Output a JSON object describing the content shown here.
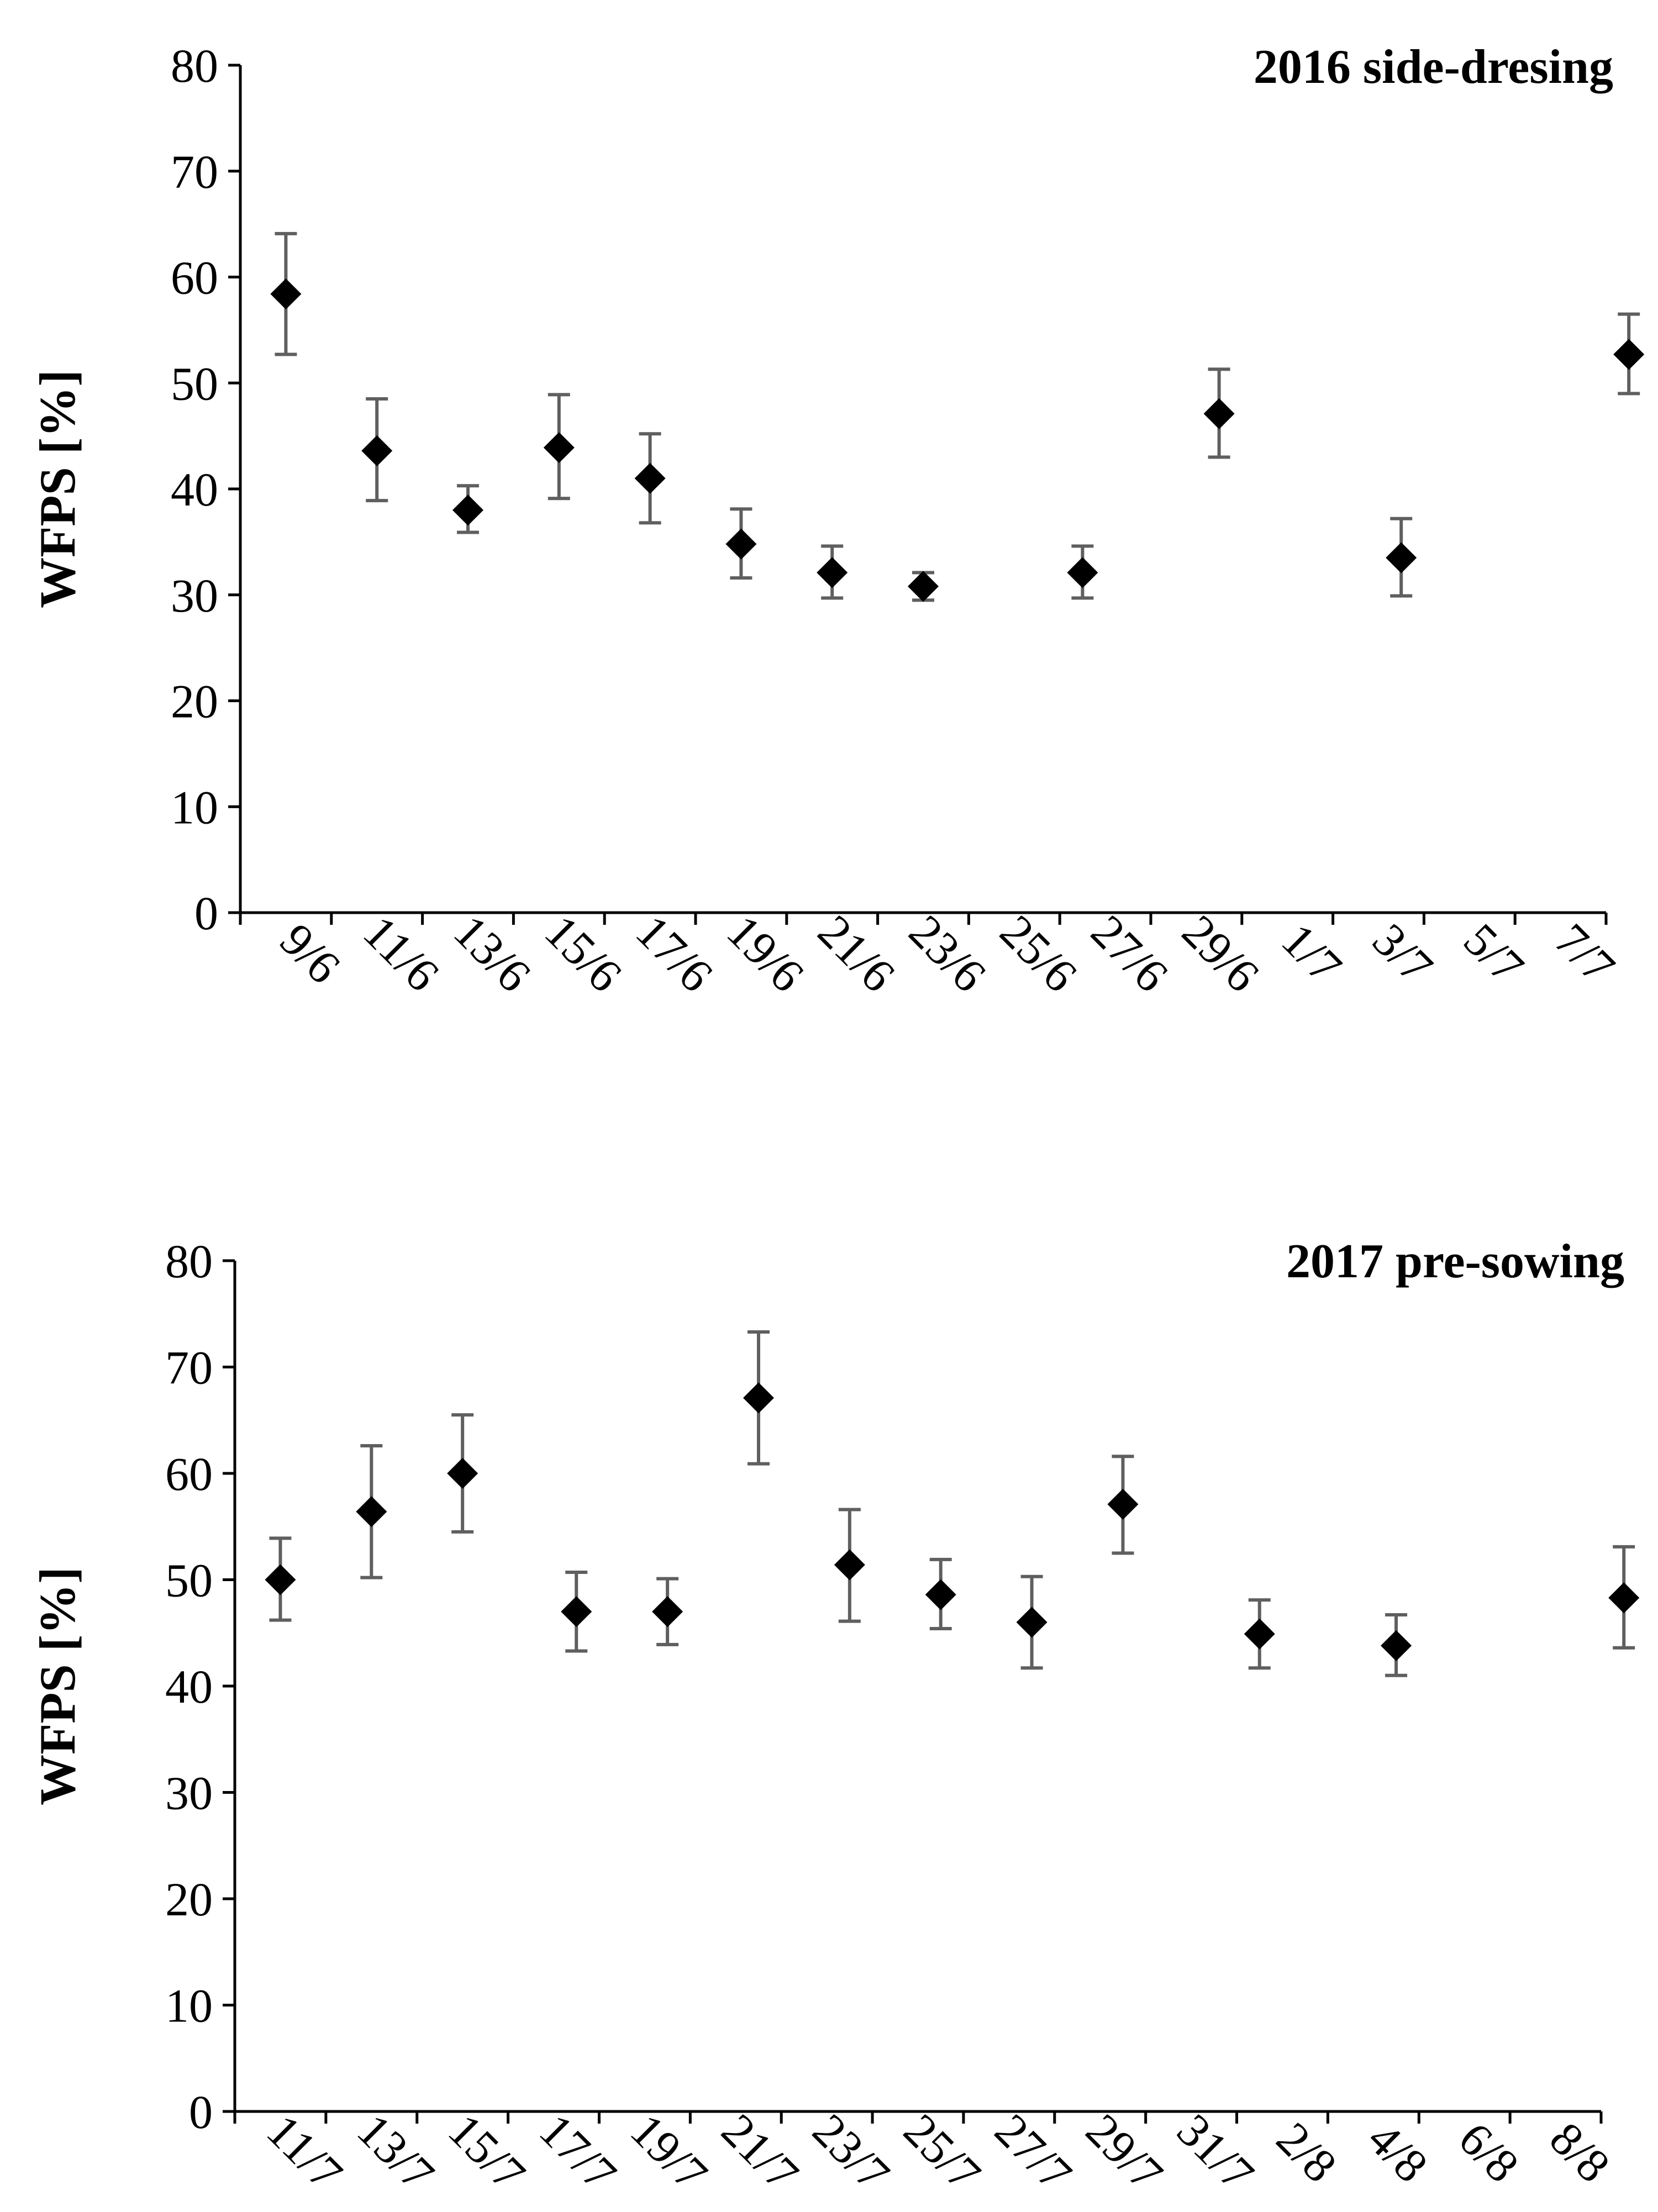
{
  "chart_data": [
    {
      "type": "scatter",
      "title": "2016 side-dresing",
      "xlabel": "",
      "ylabel": "WFPS [%]",
      "ylim": [
        0,
        80
      ],
      "yticks": [
        0,
        10,
        20,
        30,
        40,
        50,
        60,
        70,
        80
      ],
      "categories": [
        "9/6",
        "11/6",
        "13/6",
        "15/6",
        "17/6",
        "19/6",
        "21/6",
        "23/6",
        "25/6",
        "27/6",
        "29/6",
        "1/7",
        "3/7",
        "5/7",
        "7/7"
      ],
      "series": [
        {
          "name": "WFPS",
          "points": [
            {
              "x": 0,
              "y": 58.4,
              "err_low": 52.7,
              "err_high": 64.1
            },
            {
              "x": 1,
              "y": 43.6,
              "err_low": 38.9,
              "err_high": 48.5
            },
            {
              "x": 2,
              "y": 38.0,
              "err_low": 35.9,
              "err_high": 40.3
            },
            {
              "x": 3,
              "y": 43.9,
              "err_low": 39.1,
              "err_high": 48.9
            },
            {
              "x": 4,
              "y": 41.0,
              "err_low": 36.8,
              "err_high": 45.2
            },
            {
              "x": 5,
              "y": 34.8,
              "err_low": 31.6,
              "err_high": 38.1
            },
            {
              "x": 6,
              "y": 32.1,
              "err_low": 29.7,
              "err_high": 34.6
            },
            {
              "x": 7,
              "y": 30.8,
              "err_low": 29.5,
              "err_high": 32.1
            },
            {
              "x": 8.75,
              "y": 32.1,
              "err_low": 29.7,
              "err_high": 34.6
            },
            {
              "x": 10.25,
              "y": 47.1,
              "err_low": 43.0,
              "err_high": 51.3
            },
            {
              "x": 12.25,
              "y": 33.5,
              "err_low": 29.9,
              "err_high": 37.2
            },
            {
              "x": 14.75,
              "y": 52.7,
              "err_low": 49.0,
              "err_high": 56.5
            }
          ]
        }
      ]
    },
    {
      "type": "scatter",
      "title": "2017 pre-sowing",
      "xlabel": "",
      "ylabel": "WFPS [%]",
      "ylim": [
        0,
        80
      ],
      "yticks": [
        0,
        10,
        20,
        30,
        40,
        50,
        60,
        70,
        80
      ],
      "categories": [
        "11/7",
        "13/7",
        "15/7",
        "17/7",
        "19/7",
        "21/7",
        "23/7",
        "25/7",
        "27/7",
        "29/7",
        "31/7",
        "2/8",
        "4/8",
        "6/8",
        "8/8"
      ],
      "series": [
        {
          "name": "WFPS",
          "points": [
            {
              "x": 0,
              "y": 50.0,
              "err_low": 46.2,
              "err_high": 53.9
            },
            {
              "x": 1,
              "y": 56.4,
              "err_low": 50.2,
              "err_high": 62.6
            },
            {
              "x": 2,
              "y": 60.0,
              "err_low": 54.5,
              "err_high": 65.5
            },
            {
              "x": 3.25,
              "y": 47.0,
              "err_low": 43.3,
              "err_high": 50.7
            },
            {
              "x": 4.25,
              "y": 47.0,
              "err_low": 43.9,
              "err_high": 50.1
            },
            {
              "x": 5.25,
              "y": 67.1,
              "err_low": 60.9,
              "err_high": 73.3
            },
            {
              "x": 6.25,
              "y": 51.4,
              "err_low": 46.1,
              "err_high": 56.6
            },
            {
              "x": 7.25,
              "y": 48.6,
              "err_low": 45.4,
              "err_high": 51.9
            },
            {
              "x": 8.25,
              "y": 46.0,
              "err_low": 41.7,
              "err_high": 50.3
            },
            {
              "x": 9.25,
              "y": 57.1,
              "err_low": 52.5,
              "err_high": 61.6
            },
            {
              "x": 10.75,
              "y": 44.9,
              "err_low": 41.7,
              "err_high": 48.1
            },
            {
              "x": 12.25,
              "y": 43.8,
              "err_low": 41.0,
              "err_high": 46.7
            },
            {
              "x": 14.75,
              "y": 48.3,
              "err_low": 43.6,
              "err_high": 53.1
            }
          ]
        }
      ]
    }
  ]
}
